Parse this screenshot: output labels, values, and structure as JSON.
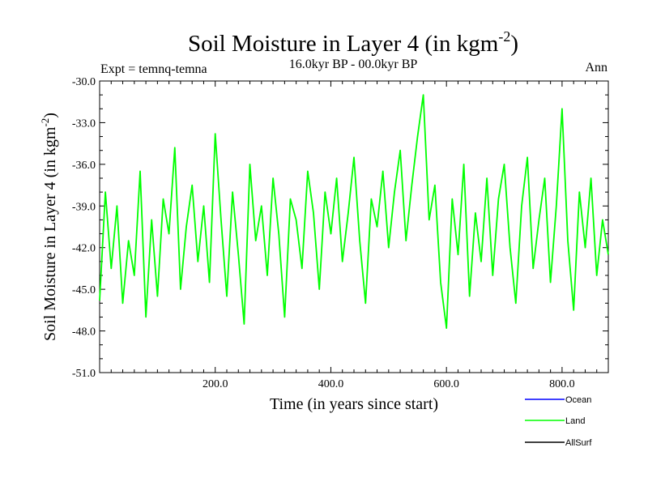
{
  "chart_data": {
    "type": "line",
    "title": "Soil Moisture in Layer 4 (in kgm",
    "title_superscript": "-2",
    "title_close": ")",
    "subtitle": "16.0kyr BP - 00.0kyr BP",
    "left_label": "Expt = temnq-temna",
    "right_label": "Ann",
    "xlabel": "Time (in years since start)",
    "ylabel": "Soil Moisture in Layer 4 (in kgm",
    "ylabel_superscript": "-2",
    "ylabel_close": ")",
    "xlim": [
      0,
      880
    ],
    "ylim": [
      -51,
      -30
    ],
    "x_ticks": [
      200,
      400,
      600,
      800
    ],
    "x_tick_labels": [
      "200.0",
      "400.0",
      "600.0",
      "800.0"
    ],
    "y_ticks": [
      -30,
      -33,
      -36,
      -39,
      -42,
      -45,
      -48,
      -51
    ],
    "y_tick_labels": [
      "-30.0",
      "-33.0",
      "-36.0",
      "-39.0",
      "-42.0",
      "-45.0",
      "-48.0",
      "-51.0"
    ],
    "legend_position": "bottom-right",
    "series": [
      {
        "name": "Ocean",
        "color": "#0000ff",
        "values": []
      },
      {
        "name": "Land",
        "color": "#00ff00",
        "x": [
          0,
          10,
          20,
          30,
          40,
          50,
          60,
          70,
          80,
          90,
          100,
          110,
          120,
          130,
          140,
          150,
          160,
          170,
          180,
          190,
          200,
          210,
          220,
          230,
          240,
          250,
          260,
          270,
          280,
          290,
          300,
          310,
          320,
          330,
          340,
          350,
          360,
          370,
          380,
          390,
          400,
          410,
          420,
          430,
          440,
          450,
          460,
          470,
          480,
          490,
          500,
          510,
          520,
          530,
          540,
          550,
          560,
          570,
          580,
          590,
          600,
          610,
          620,
          630,
          640,
          650,
          660,
          670,
          680,
          690,
          700,
          710,
          720,
          730,
          740,
          750,
          760,
          770,
          780,
          790,
          800,
          810,
          820,
          830,
          840,
          850,
          860,
          870,
          880
        ],
        "values": [
          -45.8,
          -38.0,
          -43.5,
          -39.0,
          -46.0,
          -41.5,
          -44.0,
          -36.5,
          -47.0,
          -40.0,
          -45.5,
          -38.5,
          -41.0,
          -34.8,
          -45.0,
          -40.5,
          -37.5,
          -43.0,
          -39.0,
          -44.5,
          -33.8,
          -40.0,
          -45.5,
          -38.0,
          -42.5,
          -47.5,
          -36.0,
          -41.5,
          -39.0,
          -44.0,
          -37.0,
          -41.0,
          -47.0,
          -38.5,
          -40.0,
          -43.5,
          -36.5,
          -39.5,
          -45.0,
          -38.0,
          -41.0,
          -37.0,
          -43.0,
          -39.5,
          -35.5,
          -41.5,
          -46.0,
          -38.5,
          -40.5,
          -36.5,
          -42.0,
          -38.0,
          -35.0,
          -41.5,
          -37.5,
          -34.0,
          -31.0,
          -40.0,
          -37.5,
          -44.5,
          -47.8,
          -38.5,
          -42.5,
          -36.0,
          -45.5,
          -39.5,
          -43.0,
          -37.0,
          -44.0,
          -38.5,
          -36.0,
          -42.0,
          -46.0,
          -39.0,
          -35.5,
          -43.5,
          -40.0,
          -37.0,
          -44.5,
          -39.0,
          -32.0,
          -41.5,
          -46.5,
          -38.0,
          -42.0,
          -37.0,
          -44.0,
          -40.0,
          -42.5
        ]
      },
      {
        "name": "AllSurf",
        "color": "#000000",
        "values": []
      }
    ]
  }
}
